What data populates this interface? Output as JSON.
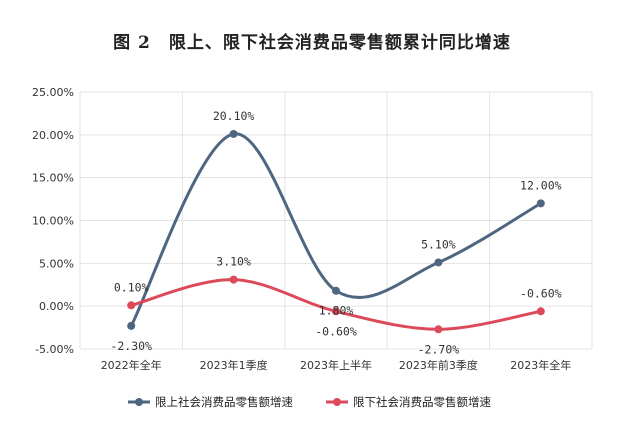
{
  "title": "图 2　限上、限下社会消费品零售额累计同比增速",
  "chart_data": {
    "type": "line",
    "title": "图 2　限上、限下社会消费品零售额累计同比增速",
    "categories": [
      "2022年全年",
      "2023年1季度",
      "2023年上半年",
      "2023年前3季度",
      "2023年全年"
    ],
    "ylim": [
      -5,
      25
    ],
    "yticks": [
      -5,
      0,
      5,
      10,
      15,
      20,
      25
    ],
    "ytick_labels": [
      "-5.00%",
      "0.00%",
      "5.00%",
      "10.00%",
      "15.00%",
      "20.00%",
      "25.00%"
    ],
    "grid": true,
    "legend_position": "bottom",
    "series": [
      {
        "name": "限上社会消费品零售额增速",
        "color": "#4f6680",
        "values": [
          -2.3,
          20.1,
          1.8,
          5.1,
          12.0
        ],
        "labels": [
          "-2.30%",
          "20.10%",
          "1.80%",
          "5.10%",
          "12.00%"
        ]
      },
      {
        "name": "限下社会消费品零售额增速",
        "color": "#dc4a5a",
        "values": [
          0.1,
          3.1,
          -0.6,
          -2.7,
          -0.6
        ],
        "labels": [
          "0.10%",
          "3.10%",
          "-0.60%",
          "-2.70%",
          "-0.60%"
        ]
      }
    ]
  }
}
